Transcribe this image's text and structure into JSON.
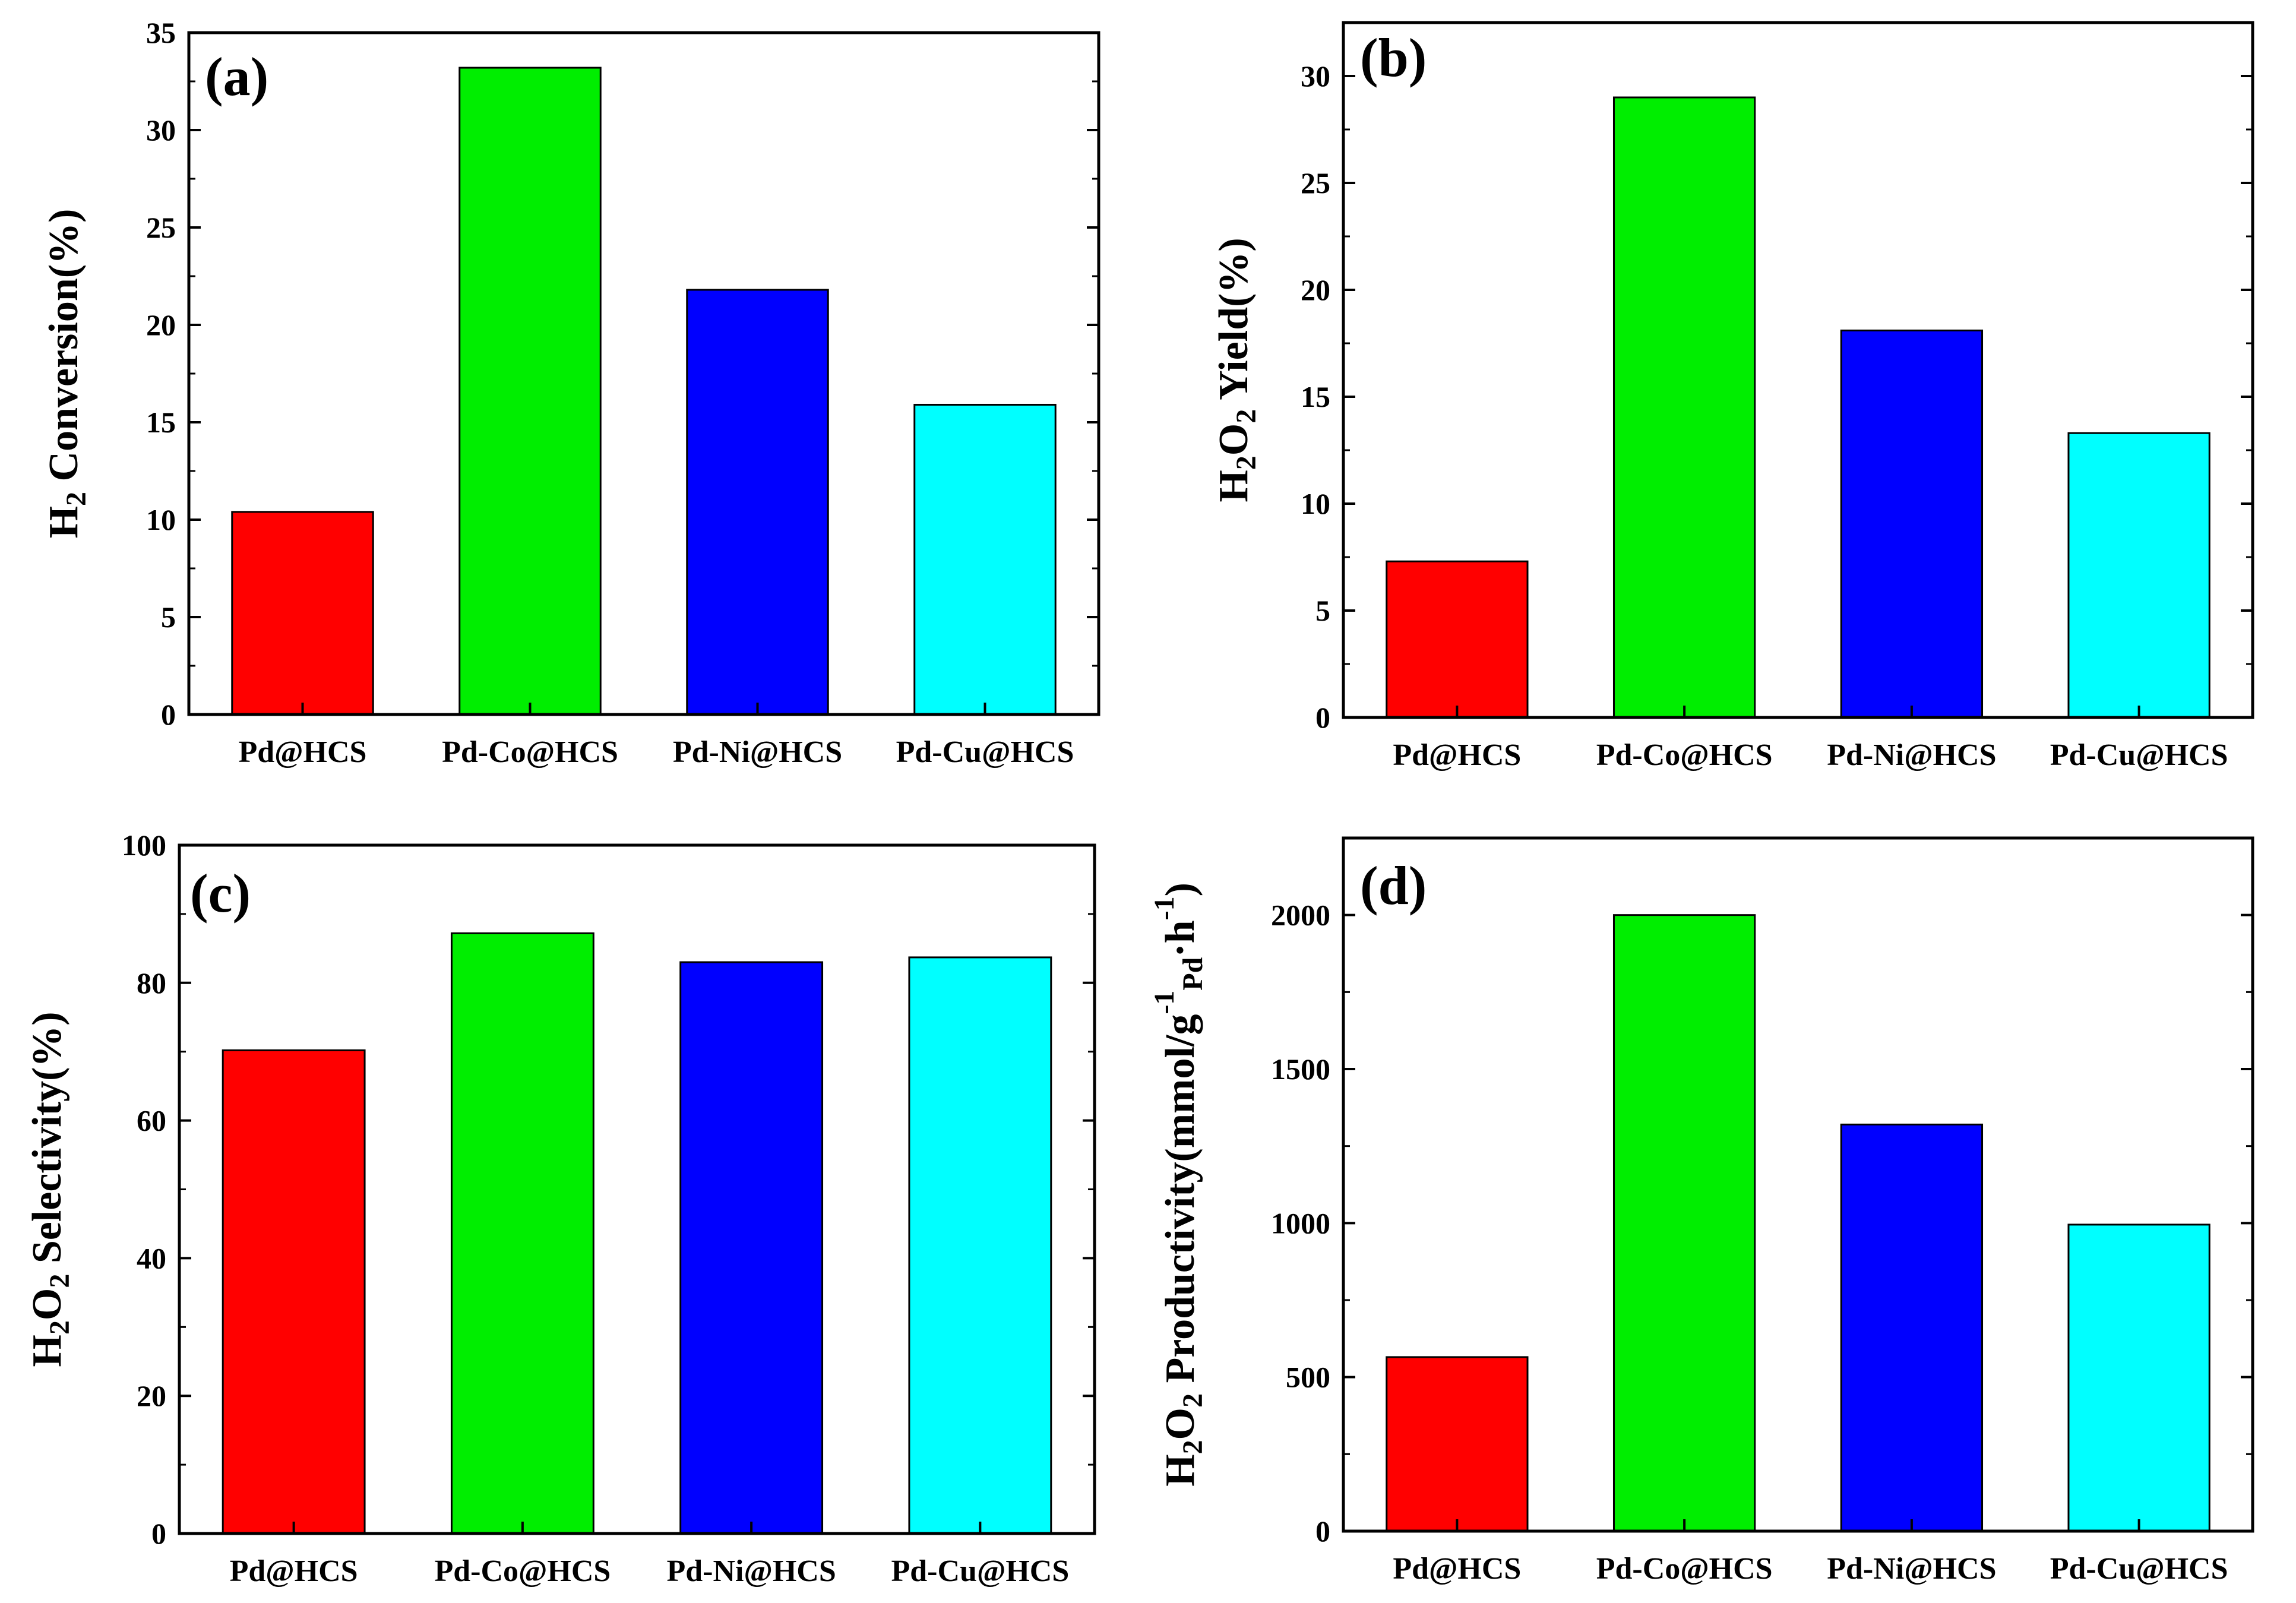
{
  "colors": {
    "Pd@HCS": "#ff0000",
    "Pd-Co@HCS": "#00ee00",
    "Pd-Ni@HCS": "#0000ff",
    "Pd-Cu@HCS": "#00ffff",
    "frame": "#000000"
  },
  "chart_data": [
    {
      "panel": "(a)",
      "type": "bar",
      "categories": [
        "Pd@HCS",
        "Pd-Co@HCS",
        "Pd-Ni@HCS",
        "Pd-Cu@HCS"
      ],
      "values": [
        10.4,
        33.2,
        21.8,
        15.9
      ],
      "ylim": [
        0,
        35
      ],
      "yticks": [
        "0",
        "5",
        "10",
        "15",
        "20",
        "25",
        "30",
        "35"
      ],
      "ylabel": {
        "main": "H",
        "sub": "2",
        "rest": " Conversion(%)"
      }
    },
    {
      "panel": "(b)",
      "type": "bar",
      "categories": [
        "Pd@HCS",
        "Pd-Co@HCS",
        "Pd-Ni@HCS",
        "Pd-Cu@HCS"
      ],
      "values": [
        7.3,
        29.0,
        18.1,
        13.3
      ],
      "ylim": [
        0,
        32.5
      ],
      "yticks": [
        "0",
        "5",
        "10",
        "15",
        "20",
        "25",
        "30"
      ],
      "ylabel": {
        "main": "H",
        "sub": "2",
        "main2": "O",
        "sub2": "2",
        "rest": " Yield(%)"
      }
    },
    {
      "panel": "(c)",
      "type": "bar",
      "categories": [
        "Pd@HCS",
        "Pd-Co@HCS",
        "Pd-Ni@HCS",
        "Pd-Cu@HCS"
      ],
      "values": [
        70.2,
        87.2,
        83.0,
        83.7
      ],
      "ylim": [
        0,
        100
      ],
      "yticks": [
        "0",
        "20",
        "40",
        "60",
        "80",
        "100"
      ],
      "ylabel": {
        "main": "H",
        "sub": "2",
        "main2": "O",
        "sub2": "2",
        "rest": " Selectivity(%)"
      }
    },
    {
      "panel": "(d)",
      "type": "bar",
      "categories": [
        "Pd@HCS",
        "Pd-Co@HCS",
        "Pd-Ni@HCS",
        "Pd-Cu@HCS"
      ],
      "values": [
        565,
        2000,
        1320,
        995
      ],
      "ylim": [
        0,
        2250
      ],
      "yticks": [
        "0",
        "500",
        "1000",
        "1500",
        "2000"
      ],
      "ylabel": {
        "main": "H",
        "sub": "2",
        "main2": "O",
        "sub2": "2",
        "rest": " Productivity(mmol/g",
        "sup": "-1",
        "sub3": "Pd",
        "rest2": "·h",
        "sup2": "-1",
        "end": ")"
      }
    }
  ]
}
